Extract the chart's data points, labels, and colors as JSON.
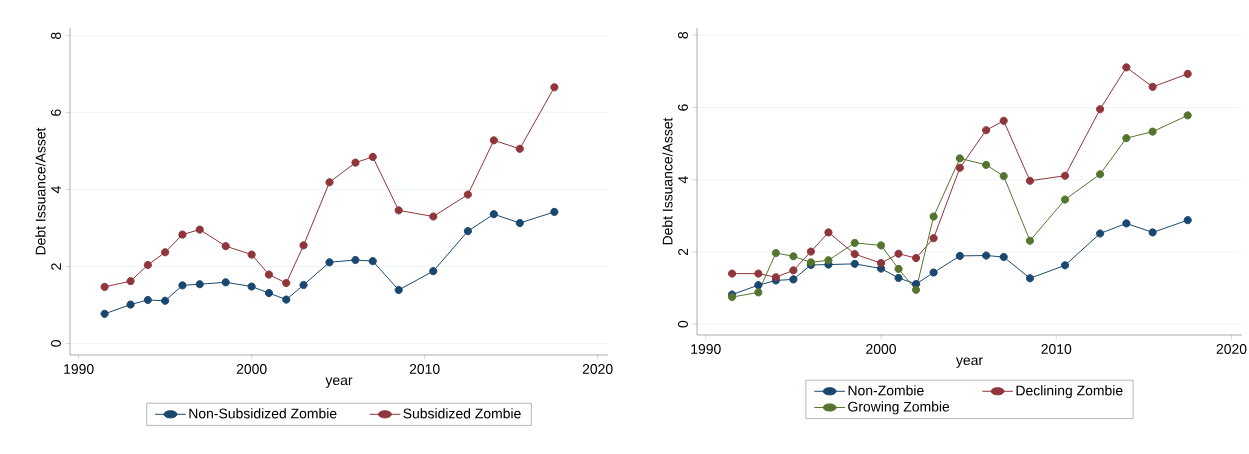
{
  "chart_data": [
    {
      "type": "line",
      "xlabel": "year",
      "ylabel": "Debt Issuance/Asset",
      "x": [
        1991.5,
        1993,
        1994,
        1995,
        1996,
        1997,
        1998.5,
        2000,
        2001,
        2002,
        2003,
        2004.5,
        2006,
        2007,
        2008.5,
        2010.5,
        2012.5,
        2014,
        2015.5,
        2017.5
      ],
      "xlim": [
        1989.5,
        2020.6
      ],
      "ylim": [
        -0.3,
        8.2
      ],
      "xticks": [
        1990,
        2000,
        2010,
        2020
      ],
      "yticks": [
        0,
        2,
        4,
        6,
        8
      ],
      "grid": "y",
      "legend": "bottom",
      "marker": "circle",
      "line_style": "solid",
      "series": [
        {
          "name": "Non-Subsidized Zombie",
          "color": "#1a476f",
          "values": [
            0.77,
            1.01,
            1.13,
            1.11,
            1.51,
            1.54,
            1.59,
            1.48,
            1.31,
            1.14,
            1.52,
            2.11,
            2.17,
            2.14,
            1.39,
            1.88,
            2.92,
            3.36,
            3.13,
            3.42
          ]
        },
        {
          "name": "Subsidized Zombie",
          "color": "#90353b",
          "values": [
            1.47,
            1.62,
            2.04,
            2.37,
            2.83,
            2.96,
            2.53,
            2.31,
            1.79,
            1.57,
            2.55,
            4.19,
            4.7,
            4.85,
            3.46,
            3.3,
            3.87,
            5.28,
            5.06,
            6.66
          ]
        }
      ]
    },
    {
      "type": "line",
      "xlabel": "year",
      "ylabel": "Debt Issuance/Asset",
      "x": [
        1991.5,
        1993,
        1994,
        1995,
        1996,
        1997,
        1998.5,
        2000,
        2001,
        2002,
        2003,
        2004.5,
        2006,
        2007,
        2008.5,
        2010.5,
        2012.5,
        2014,
        2015.5,
        2017.5
      ],
      "xlim": [
        1989.5,
        2020.6
      ],
      "ylim": [
        -0.3,
        8.2
      ],
      "xticks": [
        1990,
        2000,
        2010,
        2020
      ],
      "yticks": [
        0,
        2,
        4,
        6,
        8
      ],
      "grid": "y",
      "legend": "bottom",
      "marker": "circle",
      "line_style": "solid",
      "series": [
        {
          "name": "Non-Zombie",
          "color": "#1a476f",
          "values": [
            0.82,
            1.08,
            1.21,
            1.24,
            1.64,
            1.65,
            1.67,
            1.54,
            1.28,
            1.11,
            1.43,
            1.89,
            1.9,
            1.86,
            1.27,
            1.63,
            2.51,
            2.79,
            2.54,
            2.88
          ]
        },
        {
          "name": "Declining Zombie",
          "color": "#90353b",
          "values": [
            1.4,
            1.4,
            1.3,
            1.49,
            2.01,
            2.54,
            1.94,
            1.69,
            1.95,
            1.83,
            2.38,
            4.33,
            5.37,
            5.63,
            3.97,
            4.11,
            5.95,
            7.11,
            6.57,
            6.93
          ]
        },
        {
          "name": "Growing Zombie",
          "color": "#55752f",
          "values": [
            0.75,
            0.88,
            1.97,
            1.88,
            1.71,
            1.77,
            2.25,
            2.18,
            1.53,
            0.95,
            2.98,
            4.59,
            4.41,
            4.1,
            2.31,
            3.45,
            4.15,
            5.15,
            5.33,
            5.78
          ]
        }
      ]
    }
  ]
}
